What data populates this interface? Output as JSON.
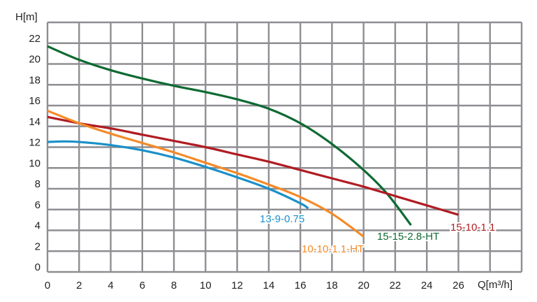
{
  "chart_data": {
    "type": "line",
    "title": "",
    "xlabel": "Q[m³/h]",
    "ylabel": "H[m]",
    "xlim": [
      0,
      30
    ],
    "ylim": [
      0,
      24
    ],
    "grid": true,
    "legend": "inline labels at curve ends",
    "xticks": [
      "0",
      "2",
      "4",
      "6",
      "8",
      "10",
      "12",
      "14",
      "16",
      "18",
      "20",
      "22",
      "24",
      "26"
    ],
    "yticks": [
      "0",
      "2",
      "4",
      "6",
      "8",
      "10",
      "12",
      "14",
      "16",
      "18",
      "20",
      "22"
    ],
    "series": [
      {
        "name": "15-15-2.8-HT",
        "color": "#0e6a32",
        "x": [
          0,
          2,
          4,
          6,
          8,
          10,
          12,
          14,
          16,
          18,
          20,
          21.5,
          23
        ],
        "y": [
          21.7,
          20.4,
          19.4,
          18.6,
          17.9,
          17.3,
          16.6,
          15.7,
          14.3,
          12.3,
          9.8,
          7.5,
          4.5
        ]
      },
      {
        "name": "15-10-1.1",
        "color": "#b01c22",
        "x": [
          0,
          2,
          4,
          6,
          8,
          10,
          12,
          14,
          16,
          18,
          20,
          22,
          24,
          26
        ],
        "y": [
          14.9,
          14.3,
          13.8,
          13.2,
          12.6,
          12.0,
          11.3,
          10.6,
          9.8,
          9.0,
          8.2,
          7.3,
          6.4,
          5.5
        ]
      },
      {
        "name": "10-10-1.1-HT",
        "color": "#f58a28",
        "x": [
          0,
          2,
          4,
          6,
          8,
          10,
          12,
          14,
          16,
          18,
          20
        ],
        "y": [
          15.5,
          14.3,
          13.3,
          12.4,
          11.5,
          10.5,
          9.5,
          8.4,
          7.2,
          5.6,
          3.4
        ]
      },
      {
        "name": "13-9-0.75",
        "color": "#1a90c8",
        "x": [
          0,
          1,
          2,
          4,
          6,
          8,
          10,
          12,
          14,
          16,
          16.5
        ],
        "y": [
          12.5,
          12.55,
          12.5,
          12.2,
          11.7,
          11.0,
          10.1,
          9.1,
          8.0,
          6.6,
          6.1
        ]
      }
    ],
    "grid_color": "#8e8e93"
  }
}
